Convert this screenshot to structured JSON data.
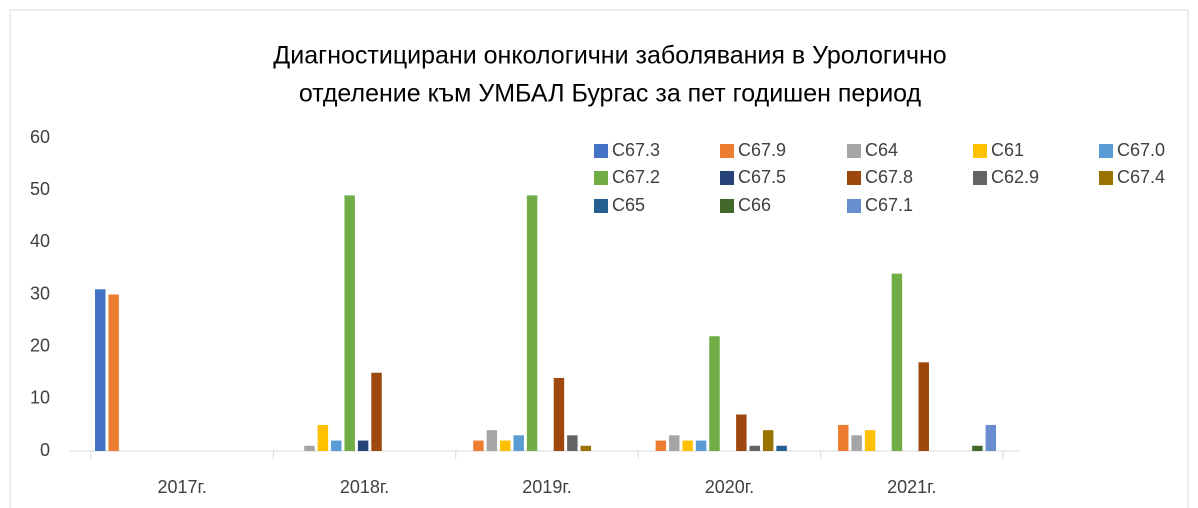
{
  "chart_data": {
    "type": "bar",
    "title": [
      "Диагностицирани онкологични заболявания в Урологично",
      "отделение към УМБАЛ Бургас за пет годишен период"
    ],
    "categories": [
      "2017г.",
      "2018г.",
      "2019г.",
      "2020г.",
      "2021г."
    ],
    "series": [
      {
        "name": "C67.3",
        "color": "#4472c4",
        "values": [
          31,
          0,
          0,
          0,
          0
        ]
      },
      {
        "name": "C67.9",
        "color": "#ed7d31",
        "values": [
          30,
          0,
          2,
          2,
          5
        ]
      },
      {
        "name": "C64",
        "color": "#a5a5a5",
        "values": [
          0,
          1,
          4,
          3,
          3
        ]
      },
      {
        "name": "C61",
        "color": "#ffc000",
        "values": [
          0,
          5,
          2,
          2,
          4
        ]
      },
      {
        "name": "C67.0",
        "color": "#5b9bd5",
        "values": [
          0,
          2,
          3,
          2,
          0
        ]
      },
      {
        "name": "C67.2",
        "color": "#70ad47",
        "values": [
          0,
          49,
          49,
          22,
          34
        ]
      },
      {
        "name": "C67.5",
        "color": "#264478",
        "values": [
          0,
          2,
          0,
          0,
          0
        ]
      },
      {
        "name": "C67.8",
        "color": "#9e480e",
        "values": [
          0,
          15,
          14,
          7,
          17
        ]
      },
      {
        "name": "C62.9",
        "color": "#636363",
        "values": [
          0,
          0,
          3,
          1,
          0
        ]
      },
      {
        "name": "C67.4",
        "color": "#997300",
        "values": [
          0,
          0,
          1,
          4,
          0
        ]
      },
      {
        "name": "C65",
        "color": "#255e91",
        "values": [
          0,
          0,
          0,
          1,
          0
        ]
      },
      {
        "name": "C66",
        "color": "#43682b",
        "values": [
          0,
          0,
          0,
          0,
          1
        ]
      },
      {
        "name": "C67.1",
        "color": "#698ed0",
        "values": [
          0,
          0,
          0,
          0,
          5
        ]
      }
    ],
    "ylim": [
      0,
      60
    ],
    "yticks": [
      0,
      10,
      20,
      30,
      40,
      50,
      60
    ],
    "grid": false,
    "legend": "top-right"
  }
}
